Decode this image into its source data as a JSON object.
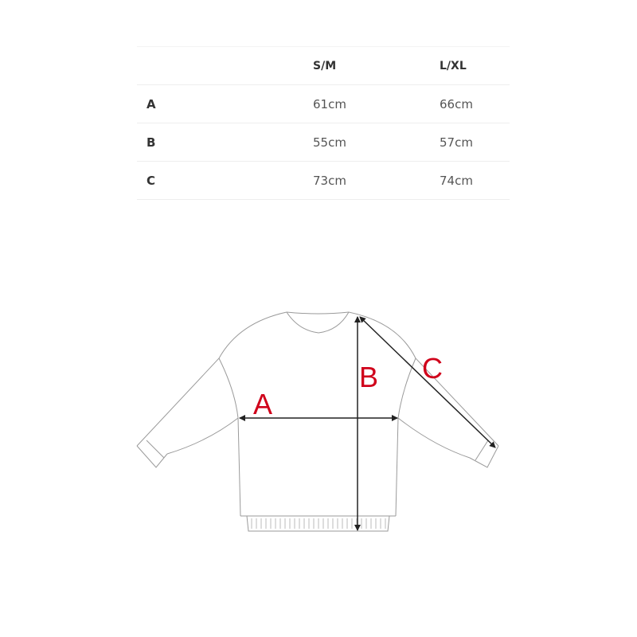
{
  "table": {
    "headers": [
      "",
      "S/M",
      "L/XL"
    ],
    "rows": [
      {
        "label": "A",
        "sm": "61cm",
        "lxl": "66cm"
      },
      {
        "label": "B",
        "sm": "55cm",
        "lxl": "57cm"
      },
      {
        "label": "C",
        "sm": "73cm",
        "lxl": "74cm"
      }
    ]
  },
  "diagram": {
    "labels": {
      "a": "A",
      "b": "B",
      "c": "C"
    },
    "label_color": "#d0021b"
  }
}
